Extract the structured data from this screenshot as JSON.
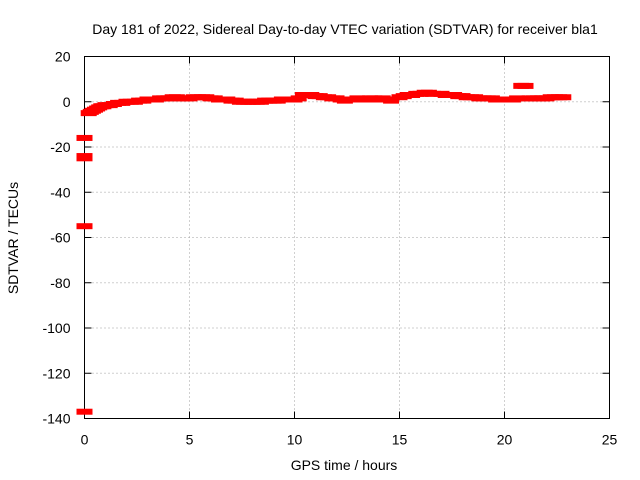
{
  "chart_data": {
    "type": "scatter",
    "title": "Day 181 of 2022, Sidereal Day-to-day VTEC variation (SDTVAR) for receiver bla1",
    "xlabel": "GPS time / hours",
    "ylabel": "SDTVAR / TECUs",
    "xlim": [
      0,
      25
    ],
    "ylim": [
      -140,
      20
    ],
    "xticks": [
      "0",
      "5",
      "10",
      "15",
      "20",
      "25"
    ],
    "yticks": [
      "20",
      "0",
      "-20",
      "-40",
      "-60",
      "-80",
      "-100",
      "-120",
      "-140"
    ],
    "grid": true,
    "legend": "none",
    "color": "#ff0000",
    "series": [
      {
        "x": [
          0.0,
          0.0,
          0.0,
          0.0,
          0.0,
          0.2,
          0.3,
          0.4,
          0.5,
          0.6,
          0.7,
          0.8,
          0.9,
          1.0,
          1.2,
          1.4,
          1.6,
          1.8,
          2.0,
          2.2,
          2.4,
          2.6,
          2.8,
          3.0,
          3.2,
          3.4,
          3.6,
          3.8,
          4.0,
          4.2,
          4.4,
          4.6,
          4.8,
          5.0,
          5.2,
          5.4,
          5.6,
          5.8,
          6.0,
          6.2,
          6.4,
          6.6,
          6.8,
          7.0,
          7.2,
          7.4,
          7.6,
          7.8,
          8.0,
          8.2,
          8.4,
          8.6,
          8.8,
          9.0,
          9.2,
          9.4,
          9.6,
          9.8,
          10.0,
          10.2,
          10.4,
          10.6,
          10.8,
          11.0,
          11.2,
          11.4,
          11.6,
          11.8,
          12.0,
          12.2,
          12.4,
          12.6,
          12.8,
          13.0,
          13.2,
          13.4,
          13.6,
          13.8,
          14.0,
          14.2,
          14.4,
          14.6,
          15.0,
          15.2,
          15.4,
          15.6,
          15.8,
          16.0,
          16.2,
          16.4,
          16.6,
          17.0,
          17.2,
          17.4,
          17.6,
          17.8,
          18.0,
          18.2,
          18.4,
          18.6,
          18.8,
          19.0,
          19.2,
          19.4,
          19.6,
          19.8,
          20.0,
          20.2,
          20.4,
          20.6,
          20.8,
          21.0,
          21.2,
          21.4,
          21.6,
          21.8,
          22.0,
          22.2,
          22.4,
          22.6,
          22.8
        ],
        "y": [
          -16,
          -24,
          -25,
          -55,
          -137,
          -5,
          -4.5,
          -4,
          -3.5,
          -3,
          -2.5,
          -2,
          -2,
          -1.5,
          -1.5,
          -1,
          -0.5,
          -0.5,
          0,
          0,
          0,
          0.5,
          0.5,
          1,
          1,
          1,
          1.5,
          1.5,
          1.5,
          2,
          2,
          1.5,
          1.5,
          1.5,
          2,
          2,
          2,
          2,
          1.5,
          1.5,
          1,
          1,
          1,
          0.5,
          0.5,
          0,
          0,
          0,
          0,
          0,
          0,
          0.5,
          0.5,
          0.5,
          0.5,
          1,
          1,
          1,
          1,
          1.5,
          3,
          3,
          3,
          2.5,
          2.5,
          2,
          2,
          1.5,
          1.5,
          1,
          0.5,
          1,
          1,
          1.5,
          1,
          1,
          1.5,
          1.5,
          1,
          1.5,
          1,
          0.5,
          2,
          2.5,
          3,
          3,
          3.5,
          3.5,
          4,
          4,
          3.5,
          3.5,
          3,
          3,
          3,
          2.5,
          2.5,
          2,
          2,
          2,
          1.5,
          1.5,
          1.5,
          1.5,
          1,
          1,
          1,
          1,
          1,
          1.5,
          7,
          7,
          1.5,
          1.5,
          1.5,
          1.5,
          1.5,
          2,
          2,
          2,
          2
        ]
      }
    ]
  }
}
